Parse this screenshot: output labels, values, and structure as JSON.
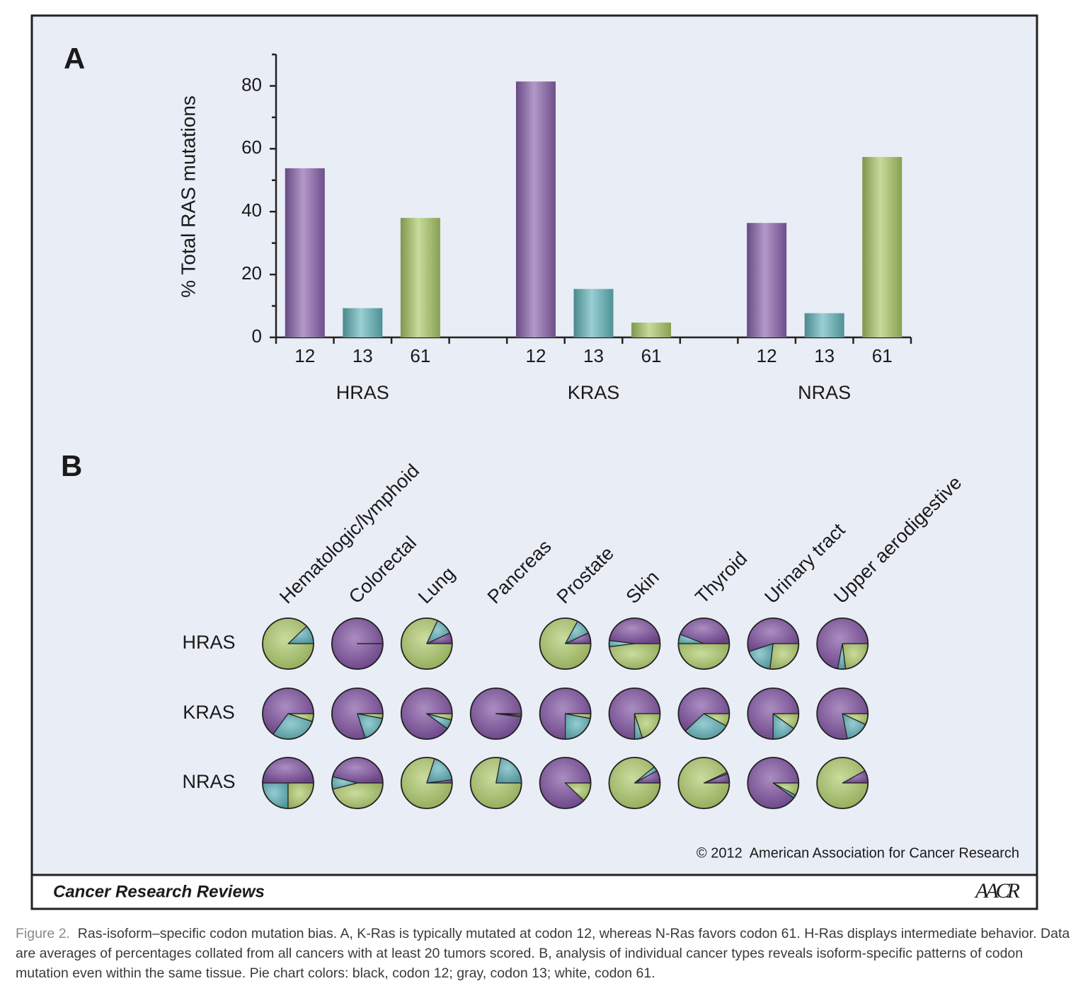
{
  "figure": {
    "copyright": "© 2012  American Association for Cancer Research",
    "journal": "Cancer Research Reviews",
    "logo": "AACR",
    "caption_label": "Figure 2.",
    "caption": "Ras-isoform–specific codon mutation bias. A, K-Ras is typically mutated at codon 12, whereas N-Ras favors codon 61. H-Ras displays intermediate behavior. Data are averages of percentages collated from all cancers with at least 20 tumors scored. B, analysis of individual cancer types reveals isoform-specific patterns of codon mutation even within the same tissue. Pie chart colors: black, codon 12; gray, codon 13; white, codon 61."
  },
  "chart_data": [
    {
      "type": "bar",
      "panel_label": "A",
      "ylabel": "% Total RAS mutations",
      "categories": [
        "HRAS",
        "KRAS",
        "NRAS"
      ],
      "series": [
        {
          "name": "12",
          "color": "#8a62ad",
          "values": [
            53.8,
            81.4,
            36.4
          ]
        },
        {
          "name": "13",
          "color": "#62b5bb",
          "values": [
            9.3,
            15.4,
            7.7
          ]
        },
        {
          "name": "61",
          "color": "#a9c865",
          "values": [
            38,
            4.7,
            57.4
          ]
        }
      ],
      "ylim": [
        0,
        90
      ],
      "yticks": [
        0,
        20,
        40,
        60,
        80
      ],
      "minor_yticks": [
        10,
        30,
        50,
        70,
        90
      ]
    },
    {
      "type": "pie",
      "panel_label": "B",
      "rows": [
        "HRAS",
        "KRAS",
        "NRAS"
      ],
      "columns": [
        "Hematologic/lymphoid",
        "Colorectal",
        "Lung",
        "Pancreas",
        "Prostate",
        "Skin",
        "Thyroid",
        "Urinary tract",
        "Upper aerodigestive"
      ],
      "colors": [
        "#7d4f9f",
        "#5fb0b8",
        "#adc96a"
      ],
      "values": [
        [
          [
            0,
            12,
            88
          ],
          [
            100,
            0,
            0
          ],
          [
            7,
            11,
            82
          ],
          null,
          [
            7,
            10,
            83
          ],
          [
            48,
            4,
            48
          ],
          [
            44,
            6,
            50
          ],
          [
            55,
            18,
            27
          ],
          [
            72,
            5,
            23
          ]
        ],
        [
          [
            65,
            30,
            5
          ],
          [
            80,
            17,
            3
          ],
          [
            90,
            6,
            4
          ],
          [
            98,
            1,
            1
          ],
          [
            75,
            22,
            3
          ],
          [
            75,
            5,
            20
          ],
          [
            62,
            30,
            8
          ],
          [
            75,
            15,
            10
          ],
          [
            78,
            15,
            7
          ]
        ],
        [
          [
            50,
            25,
            25
          ],
          [
            46,
            8,
            46
          ],
          [
            2,
            18,
            80
          ],
          [
            0,
            22,
            78
          ],
          [
            88,
            0,
            12
          ],
          [
            8,
            3,
            89
          ],
          [
            6,
            1,
            93
          ],
          [
            90,
            2,
            8
          ],
          [
            8,
            0,
            92
          ]
        ]
      ]
    }
  ]
}
